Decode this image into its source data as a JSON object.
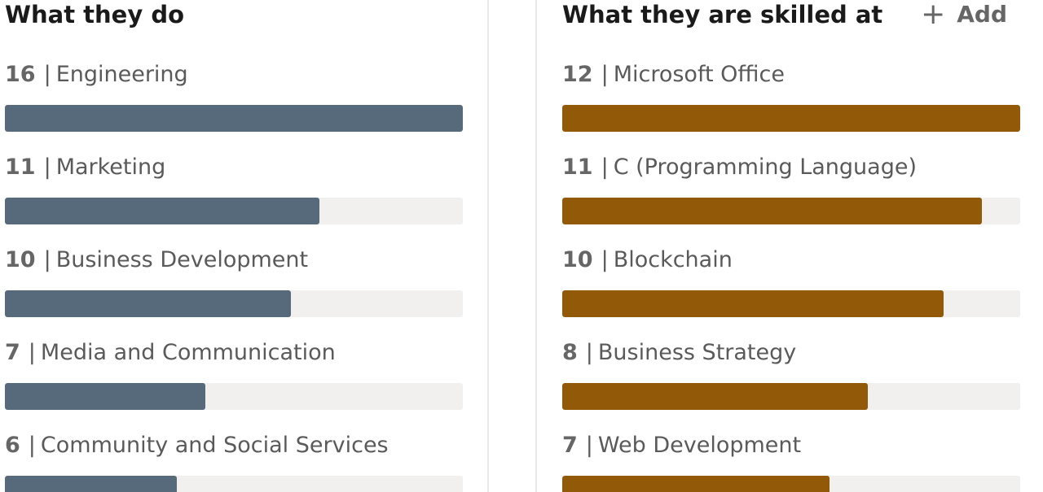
{
  "left_panel": {
    "title": "What they do",
    "bar_color": "#576A7C",
    "max_value": 16,
    "items": [
      {
        "count": "16",
        "label": "Engineering",
        "value": 16
      },
      {
        "count": "11",
        "label": "Marketing",
        "value": 11
      },
      {
        "count": "10",
        "label": "Business Development",
        "value": 10
      },
      {
        "count": "7",
        "label": "Media and Communication",
        "value": 7
      },
      {
        "count": "6",
        "label": "Community and Social Services",
        "value": 6
      }
    ]
  },
  "right_panel": {
    "title": "What they are skilled at",
    "add_label": "Add",
    "add_icon": "plus-icon",
    "bar_color": "#915908",
    "max_value": 12,
    "items": [
      {
        "count": "12",
        "label": "Microsoft Office",
        "value": 12
      },
      {
        "count": "11",
        "label": "C (Programming Language)",
        "value": 11
      },
      {
        "count": "10",
        "label": "Blockchain",
        "value": 10
      },
      {
        "count": "8",
        "label": "Business Strategy",
        "value": 8
      },
      {
        "count": "7",
        "label": "Web Development",
        "value": 7
      }
    ]
  }
}
